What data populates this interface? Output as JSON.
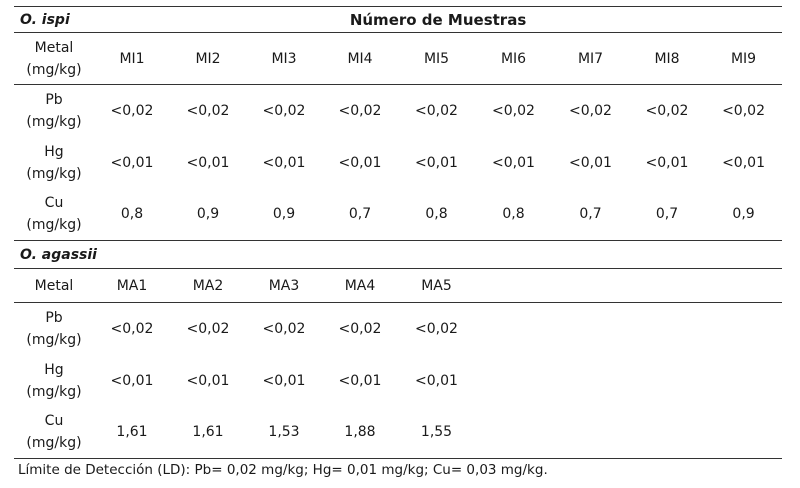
{
  "table1": {
    "species": "O. ispi",
    "header": "Número de Muestras",
    "metal_label": "Metal",
    "unit": "(mg/kg)",
    "samples": [
      "MI1",
      "MI2",
      "MI3",
      "MI4",
      "MI5",
      "MI6",
      "MI7",
      "MI8",
      "MI9"
    ],
    "rows": [
      {
        "metal": "Pb",
        "values": [
          "<0,02",
          "<0,02",
          "<0,02",
          "<0,02",
          "<0,02",
          "<0,02",
          "<0,02",
          "<0,02",
          "<0,02"
        ]
      },
      {
        "metal": "Hg",
        "values": [
          "<0,01",
          "<0,01",
          "<0,01",
          "<0,01",
          "<0,01",
          "<0,01",
          "<0,01",
          "<0,01",
          "<0,01"
        ]
      },
      {
        "metal": "Cu",
        "values": [
          "0,8",
          "0,9",
          "0,9",
          "0,7",
          "0,8",
          "0,8",
          "0,7",
          "0,7",
          "0,9"
        ]
      }
    ]
  },
  "table2": {
    "species": "O. agassii",
    "metal_label": "Metal",
    "unit": "(mg/kg)",
    "samples": [
      "MA1",
      "MA2",
      "MA3",
      "MA4",
      "MA5"
    ],
    "rows": [
      {
        "metal": "Pb",
        "values": [
          "<0,02",
          "<0,02",
          "<0,02",
          "<0,02",
          "<0,02"
        ]
      },
      {
        "metal": "Hg",
        "values": [
          "<0,01",
          "<0,01",
          "<0,01",
          "<0,01",
          "<0,01"
        ]
      },
      {
        "metal": "Cu",
        "values": [
          "1,61",
          "1,61",
          "1,53",
          "1,88",
          "1,55"
        ]
      }
    ]
  },
  "footnote": "Límite de Detección (LD):  Pb= 0,02 mg/kg; Hg= 0,01 mg/kg; Cu= 0,03 mg/kg."
}
